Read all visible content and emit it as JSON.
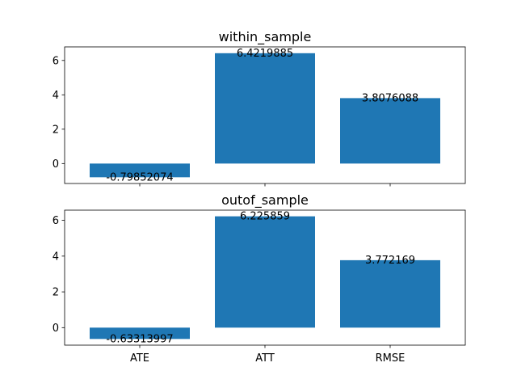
{
  "chart_data": [
    {
      "type": "bar",
      "title": "within_sample",
      "categories": [
        "ATE",
        "ATT",
        "RMSE"
      ],
      "values": [
        -0.79852074,
        6.4219885,
        3.8076088
      ],
      "labels": [
        "-0.79852074",
        "6.4219885",
        "3.8076088"
      ],
      "yticks": [
        0,
        2,
        4,
        6
      ],
      "ylim": [
        -1.16,
        6.79
      ],
      "show_xtick_labels": false,
      "bar_color": "#1f77b4",
      "grid": false
    },
    {
      "type": "bar",
      "title": "outof_sample",
      "categories": [
        "ATE",
        "ATT",
        "RMSE"
      ],
      "values": [
        -0.63313997,
        6.225859,
        3.772169
      ],
      "labels": [
        "-0.63313997",
        "6.225859",
        "3.772169"
      ],
      "yticks": [
        0,
        2,
        4,
        6
      ],
      "ylim": [
        -0.98,
        6.57
      ],
      "show_xtick_labels": true,
      "bar_color": "#1f77b4",
      "grid": false
    }
  ]
}
